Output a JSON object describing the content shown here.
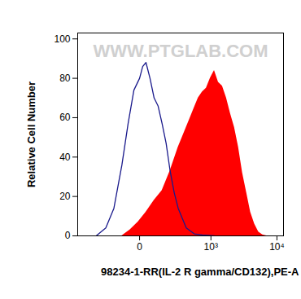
{
  "chart_data": {
    "type": "histogram",
    "x_label": "98234-1-RR(IL-2 R gamma/CD132),PE-A",
    "y_label": "Relative Cell Number",
    "annotations": [
      "WWW.PTGLAB.COM"
    ],
    "log": "x",
    "xlim": [
      -700,
      12500
    ],
    "xticks": [
      0,
      {
        "value": 1000,
        "label": "10³"
      },
      {
        "value": 10000,
        "label": "10⁴"
      }
    ],
    "ylim": [
      0,
      103
    ],
    "yticks": [
      0,
      20,
      40,
      60,
      80,
      100
    ],
    "series": [
      {
        "type": "area",
        "color": "#ff0000",
        "x": [
          -81,
          -38,
          -5,
          24,
          63,
          113,
          179,
          266,
          319,
          380,
          449,
          528,
          619,
          723,
          842,
          978,
          1135,
          1314,
          1518,
          1752,
          2020,
          2327,
          2678,
          3079,
          3541,
          4068,
          4670,
          5360,
          6150,
          7050
        ],
        "values": [
          0,
          3,
          7,
          12,
          18,
          23,
          33,
          45,
          50,
          55,
          60,
          65,
          70,
          73,
          75,
          80,
          84,
          78,
          76,
          70,
          62,
          55,
          45,
          32,
          22,
          12,
          6,
          2,
          0.5,
          0
        ]
      },
      {
        "type": "line",
        "color": "#1a1a8c",
        "x": [
          -330,
          -211,
          -137,
          -81,
          -47,
          -21,
          0,
          11,
          24,
          42,
          63,
          86,
          113,
          144,
          179,
          220,
          266,
          319,
          380,
          528,
          723,
          1135
        ],
        "values": [
          0,
          4,
          14,
          36,
          57,
          74,
          80,
          86,
          88,
          80,
          70,
          66,
          57,
          47,
          33,
          22,
          14,
          9,
          4,
          1,
          0.5,
          0
        ]
      }
    ]
  }
}
